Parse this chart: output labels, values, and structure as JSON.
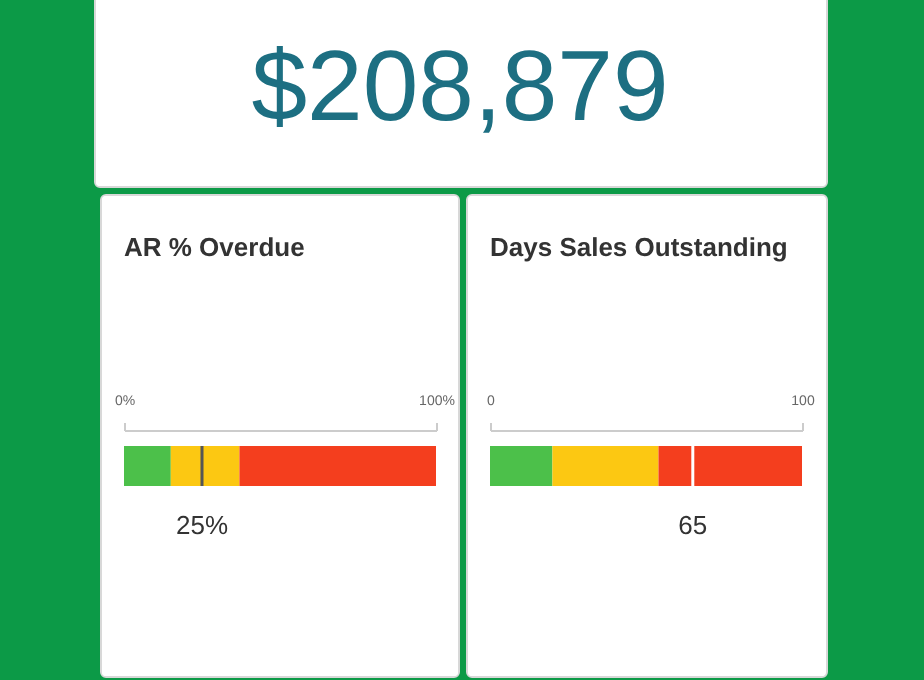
{
  "chart_data": [
    {
      "type": "other",
      "annotations": [
        "$208,879"
      ]
    },
    {
      "type": "bar",
      "title": "AR % Overdue",
      "orientation": "horizontal",
      "stacked": true,
      "categories": [
        null
      ],
      "series": [
        {
          "color": "#4cc04a",
          "values": [
            15
          ]
        },
        {
          "color": "#fcc812",
          "values": [
            22
          ]
        },
        {
          "color": "#f43e1e",
          "values": [
            63
          ]
        }
      ],
      "xlim": [
        0,
        100
      ],
      "xticks": [
        {
          "value": 0,
          "label": "0%"
        },
        {
          "value": 100,
          "label": "100%"
        }
      ],
      "ref_lines": [
        {
          "axis": "x",
          "value": 25,
          "label": "25%",
          "color": "#555555"
        }
      ]
    },
    {
      "type": "bar",
      "title": "Days Sales Outstanding",
      "orientation": "horizontal",
      "stacked": true,
      "categories": [
        null
      ],
      "series": [
        {
          "color": "#4cc04a",
          "values": [
            20
          ]
        },
        {
          "color": "#fcc812",
          "values": [
            34
          ]
        },
        {
          "color": "#f43e1e",
          "values": [
            46
          ]
        }
      ],
      "xlim": [
        0,
        100
      ],
      "xticks": [
        0,
        100
      ],
      "ref_lines": [
        {
          "axis": "x",
          "value": 65,
          "label": "65",
          "color": "#ffffff"
        }
      ]
    }
  ]
}
